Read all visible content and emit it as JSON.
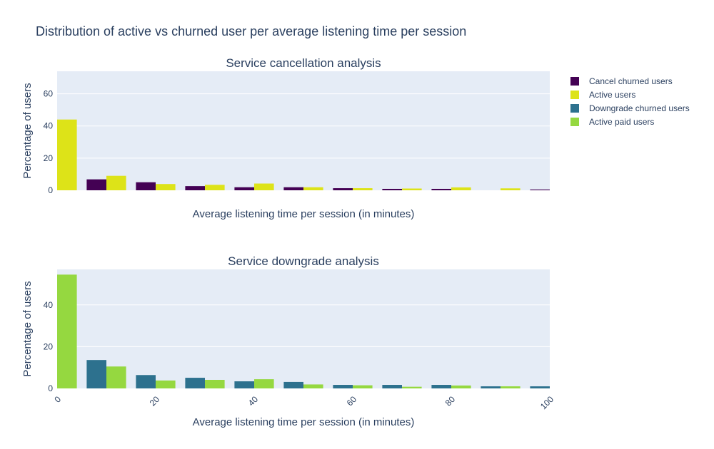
{
  "figure": {
    "title": "Distribution of active vs churned user per average listening time per session"
  },
  "legend": {
    "placement": "top-right",
    "items": [
      {
        "name": "Cancel churned users",
        "color": "#440154"
      },
      {
        "name": "Active users",
        "color": "#dde318"
      },
      {
        "name": "Downgrade churned users",
        "color": "#2d718e"
      },
      {
        "name": "Active paid users",
        "color": "#95d840"
      }
    ]
  },
  "chart_data": [
    {
      "type": "bar",
      "title": "Service cancellation analysis",
      "xlabel": "Average listening time per session (in minutes)",
      "ylabel": "Percentage of users",
      "xlim": [
        0,
        100
      ],
      "ylim": [
        0,
        74
      ],
      "yticks": [
        0,
        20,
        40,
        60
      ],
      "xticks": [],
      "grid": true,
      "bin_width": 10,
      "x": [
        0,
        10,
        20,
        30,
        40,
        50,
        60,
        70,
        80,
        90,
        100
      ],
      "series": [
        {
          "name": "Cancel churned users",
          "color": "#440154",
          "values": [
            0,
            6.8,
            5.0,
            2.6,
            1.9,
            1.9,
            1.3,
            0.9,
            0.9,
            0,
            0.5
          ]
        },
        {
          "name": "Active users",
          "color": "#dde318",
          "values": [
            44.0,
            9.0,
            3.9,
            3.4,
            4.2,
            1.9,
            1.3,
            1.1,
            1.8,
            1.2,
            0
          ]
        }
      ]
    },
    {
      "type": "bar",
      "title": "Service downgrade analysis",
      "xlabel": "Average listening time per session (in minutes)",
      "ylabel": "Percentage of users",
      "xlim": [
        0,
        100
      ],
      "ylim": [
        0,
        57
      ],
      "yticks": [
        0,
        20,
        40
      ],
      "xticks": [
        0,
        20,
        40,
        60,
        80,
        100
      ],
      "grid": true,
      "bin_width": 10,
      "x": [
        0,
        10,
        20,
        30,
        40,
        50,
        60,
        70,
        80,
        90,
        100
      ],
      "series": [
        {
          "name": "Downgrade churned users",
          "color": "#2d718e",
          "values": [
            0,
            13.6,
            6.4,
            5.1,
            3.4,
            3.1,
            1.7,
            1.7,
            1.7,
            1.0,
            1.0
          ]
        },
        {
          "name": "Active paid users",
          "color": "#95d840",
          "values": [
            54.5,
            10.5,
            3.8,
            4.1,
            4.4,
            1.9,
            1.5,
            0.8,
            1.4,
            1.0,
            0
          ]
        }
      ]
    }
  ]
}
